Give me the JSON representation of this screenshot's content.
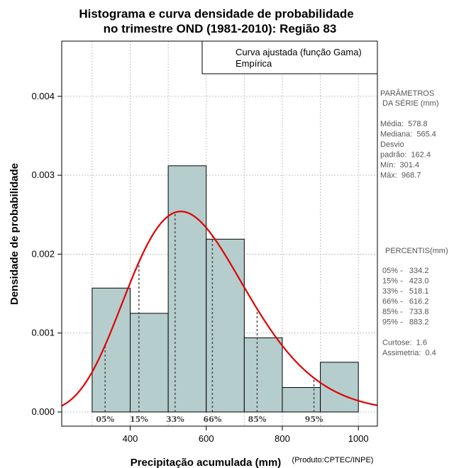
{
  "chart_data": {
    "type": "bar",
    "title_line1": "Histograma e curva densidade de probabilidade",
    "title_line2": "no trimestre OND (1981-2010): Região 83",
    "xlabel": "Precipitação acumulada (mm)",
    "ylabel": "Densidade de probabilidade",
    "credit": "(Produto:CPTEC/INPE)",
    "xlim": [
      220,
      1050
    ],
    "ylim": [
      -0.00018,
      0.0047
    ],
    "x_ticks": [
      400,
      600,
      800,
      1000
    ],
    "x_tick_labels": [
      "400",
      "600",
      "800",
      "1000"
    ],
    "y_ticks": [
      0.0,
      0.001,
      0.002,
      0.003,
      0.004
    ],
    "y_tick_labels": [
      "0.000",
      "0.001",
      "0.002",
      "0.003",
      "0.004"
    ],
    "grid": true,
    "bins": [
      {
        "start": 300,
        "end": 400,
        "density": 0.00157
      },
      {
        "start": 400,
        "end": 500,
        "density": 0.00125
      },
      {
        "start": 500,
        "end": 600,
        "density": 0.00312
      },
      {
        "start": 600,
        "end": 700,
        "density": 0.00219
      },
      {
        "start": 700,
        "end": 800,
        "density": 0.00094
      },
      {
        "start": 800,
        "end": 900,
        "density": 0.00031
      },
      {
        "start": 900,
        "end": 1000,
        "density": 0.00063
      }
    ],
    "gamma_fit": {
      "mean": 578.8,
      "sd": 162.4
    },
    "percentiles": [
      {
        "label": "05%",
        "value": 334.2
      },
      {
        "label": "15%",
        "value": 423.0
      },
      {
        "label": "33%",
        "value": 518.1
      },
      {
        "label": "66%",
        "value": 616.2
      },
      {
        "label": "85%",
        "value": 733.8
      },
      {
        "label": "95%",
        "value": 883.2
      }
    ],
    "legend": [
      {
        "label": "Curva ajustada (função Gama)",
        "color": "#e00000"
      },
      {
        "label": "Empírica",
        "color": "#000000"
      }
    ],
    "legend_position": "top-right",
    "bar_color": "#b5cecd",
    "curve_color": "#e00000"
  },
  "side_panel": {
    "params_title": "PARÂMETROS\n DA SÉRIE (mm)",
    "params_body": "Média:  578.8\nMediana:  565.4\nDesvio\npadrão:  162.4\nMín:  301.4\nMáx:  968.7",
    "percentis_title": "PERCENTIS(mm)",
    "percentis_body": "05% -   334.2\n15% -   423.0\n33% -   518.1\n66% -   616.2\n85% -   733.8\n95% -   883.2\n\nCurtose:  1.6\nAssimetria:  0.4"
  }
}
